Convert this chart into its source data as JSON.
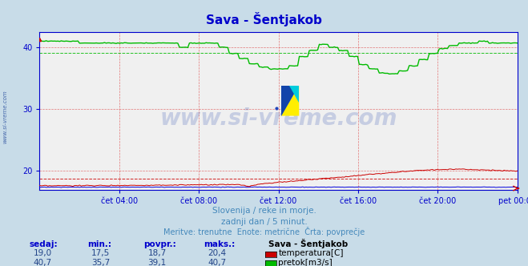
{
  "title": "Sava - Šentjakob",
  "bg_color": "#c8dce8",
  "plot_bg_color": "#f0f0f0",
  "x_labels": [
    "čet 04:00",
    "čet 08:00",
    "čet 12:00",
    "čet 16:00",
    "čet 20:00",
    "pet 00:00"
  ],
  "y_ticks": [
    20,
    30,
    40
  ],
  "y_min": 16.8,
  "y_max": 42.5,
  "avg_temp": 18.7,
  "avg_flow": 39.1,
  "watermark": "www.si-vreme.com",
  "subtitle1": "Slovenija / reke in morje.",
  "subtitle2": "zadnji dan / 5 minut.",
  "subtitle3": "Meritve: trenutne  Enote: metrične  Črta: povprečje",
  "legend_title": "Sava - Šentjakob",
  "temp_label": "temperatura[C]",
  "flow_label": "pretok[m3/s]",
  "stats_headers": [
    "sedaj:",
    "min.:",
    "povpr.:",
    "maks.:"
  ],
  "temp_stats": [
    "19,0",
    "17,5",
    "18,7",
    "20,4"
  ],
  "flow_stats": [
    "40,7",
    "35,7",
    "39,1",
    "40,7"
  ],
  "temp_color": "#cc0000",
  "flow_color": "#00bb00",
  "axis_color": "#0000cc",
  "grid_color": "#dd4444",
  "avg_line_color_temp": "#cc0000",
  "avg_line_color_flow": "#00bb00",
  "left_label_color": "#4466aa",
  "watermark_color": "#2244aa",
  "blue_line_color": "#0000dd",
  "subtitle_color": "#4488bb",
  "stats_header_color": "#0000cc",
  "stats_val_color": "#224488"
}
